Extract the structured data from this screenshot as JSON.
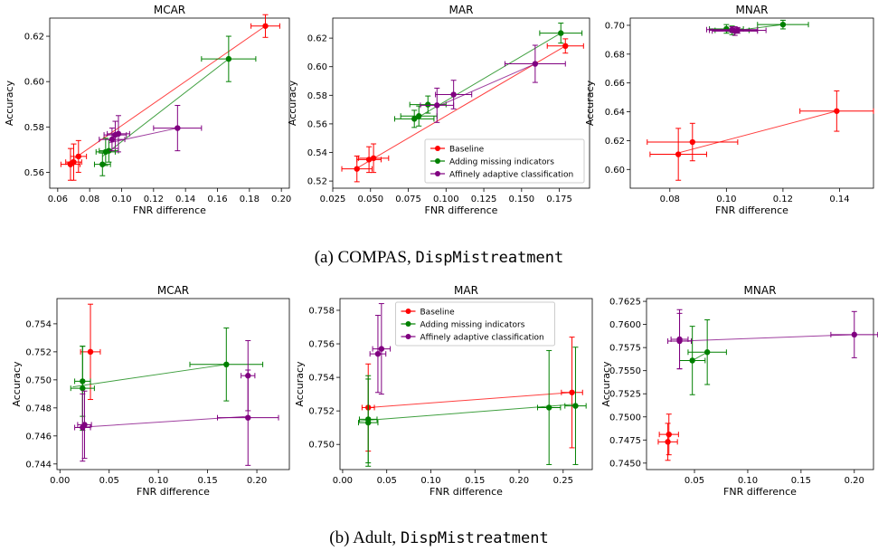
{
  "captions": [
    {
      "prefix": "(a) COMPAS, ",
      "mono": "DispMistreatment"
    },
    {
      "prefix": "(b) Adult, ",
      "mono": "DispMistreatment"
    }
  ],
  "series_colors": {
    "Baseline": "#ff0000",
    "Adding missing indicators": "#008000",
    "Affinely adaptive classification": "#800080"
  },
  "chart_data": [
    {
      "type": "scatter",
      "title": "MCAR",
      "xlabel": "FNR difference",
      "ylabel": "Accuracy",
      "xlim": [
        0.055,
        0.205
      ],
      "ylim": [
        0.553,
        0.628
      ],
      "xticks": [
        0.06,
        0.08,
        0.1,
        0.12,
        0.14,
        0.16,
        0.18,
        0.2
      ],
      "xtick_labels": [
        "0.06",
        "0.08",
        "0.10",
        "0.12",
        "0.14",
        "0.16",
        "0.18",
        "0.20"
      ],
      "yticks": [
        0.56,
        0.58,
        0.6,
        0.62
      ],
      "ytick_labels": [
        "0.56",
        "0.58",
        "0.60",
        "0.62"
      ],
      "legend": null,
      "series": [
        {
          "name": "Baseline",
          "fit": [
            [
              0.065,
              0.5635
            ],
            [
              0.19,
              0.6245
            ]
          ],
          "points": [
            [
              0.068,
              0.5635,
              0.006,
              0.007
            ],
            [
              0.07,
              0.5645,
              0.005,
              0.008
            ],
            [
              0.073,
              0.567,
              0.005,
              0.007
            ],
            [
              0.19,
              0.6245,
              0.009,
              0.005
            ]
          ]
        },
        {
          "name": "Adding missing indicators",
          "fit": [
            [
              0.088,
              0.567
            ],
            [
              0.167,
              0.61
            ]
          ],
          "points": [
            [
              0.088,
              0.5635,
              0.005,
              0.005
            ],
            [
              0.09,
              0.569,
              0.006,
              0.006
            ],
            [
              0.092,
              0.5695,
              0.006,
              0.005
            ],
            [
              0.167,
              0.61,
              0.017,
              0.01
            ]
          ]
        },
        {
          "name": "Affinely adaptive classification",
          "fit": [
            [
              0.092,
              0.573
            ],
            [
              0.135,
              0.5795
            ]
          ],
          "points": [
            [
              0.094,
              0.5745,
              0.008,
              0.005
            ],
            [
              0.096,
              0.5765,
              0.007,
              0.006
            ],
            [
              0.098,
              0.577,
              0.007,
              0.008
            ],
            [
              0.135,
              0.5795,
              0.015,
              0.01
            ]
          ]
        }
      ]
    },
    {
      "type": "scatter",
      "title": "MAR",
      "xlabel": "FNR difference",
      "ylabel": "Accuracy",
      "xlim": [
        0.025,
        0.195
      ],
      "ylim": [
        0.515,
        0.634
      ],
      "xticks": [
        0.025,
        0.05,
        0.075,
        0.1,
        0.125,
        0.15,
        0.175
      ],
      "xtick_labels": [
        "0.025",
        "0.050",
        "0.075",
        "0.100",
        "0.125",
        "0.150",
        "0.175"
      ],
      "yticks": [
        0.52,
        0.54,
        0.56,
        0.58,
        0.6,
        0.62
      ],
      "ytick_labels": [
        "0.52",
        "0.54",
        "0.56",
        "0.58",
        "0.60",
        "0.62"
      ],
      "legend": "lower-right",
      "series": [
        {
          "name": "Baseline",
          "fit": [
            [
              0.041,
              0.529
            ],
            [
              0.179,
              0.6145
            ]
          ],
          "points": [
            [
              0.041,
              0.5285,
              0.01,
              0.009
            ],
            [
              0.049,
              0.535,
              0.008,
              0.009
            ],
            [
              0.052,
              0.536,
              0.01,
              0.01
            ],
            [
              0.179,
              0.6145,
              0.012,
              0.005
            ]
          ]
        },
        {
          "name": "Adding missing indicators",
          "fit": [
            [
              0.079,
              0.563
            ],
            [
              0.176,
              0.6235
            ]
          ],
          "points": [
            [
              0.079,
              0.5635,
              0.013,
              0.006
            ],
            [
              0.082,
              0.5655,
              0.012,
              0.007
            ],
            [
              0.088,
              0.5735,
              0.012,
              0.006
            ],
            [
              0.176,
              0.6235,
              0.014,
              0.007
            ]
          ]
        },
        {
          "name": "Affinely adaptive classification",
          "fit": [
            [
              0.094,
              0.572
            ],
            [
              0.159,
              0.602
            ]
          ],
          "points": [
            [
              0.094,
              0.573,
              0.011,
              0.012
            ],
            [
              0.105,
              0.5805,
              0.012,
              0.01
            ],
            [
              0.159,
              0.602,
              0.02,
              0.013
            ]
          ]
        }
      ]
    },
    {
      "type": "scatter",
      "title": "MNAR",
      "xlabel": "FNR difference",
      "ylabel": "Accuracy",
      "xlim": [
        0.066,
        0.152
      ],
      "ylim": [
        0.587,
        0.705
      ],
      "xticks": [
        0.08,
        0.1,
        0.12,
        0.14
      ],
      "xtick_labels": [
        "0.08",
        "0.10",
        "0.12",
        "0.14"
      ],
      "yticks": [
        0.6,
        0.62,
        0.64,
        0.66,
        0.68,
        0.7
      ],
      "ytick_labels": [
        "0.60",
        "0.62",
        "0.64",
        "0.66",
        "0.68",
        "0.70"
      ],
      "legend": null,
      "series": [
        {
          "name": "Baseline",
          "fit": [
            [
              0.083,
              0.6115
            ],
            [
              0.139,
              0.6405
            ]
          ],
          "points": [
            [
              0.083,
              0.6105,
              0.01,
              0.018
            ],
            [
              0.088,
              0.619,
              0.016,
              0.013
            ],
            [
              0.139,
              0.6405,
              0.013,
              0.014
            ]
          ]
        },
        {
          "name": "Adding missing indicators",
          "fit": [
            [
              0.1,
              0.6955
            ],
            [
              0.12,
              0.7005
            ]
          ],
          "points": [
            [
              0.1,
              0.6975,
              0.006,
              0.003
            ],
            [
              0.102,
              0.6965,
              0.006,
              0.003
            ],
            [
              0.12,
              0.7005,
              0.009,
              0.003
            ]
          ]
        },
        {
          "name": "Affinely adaptive classification",
          "fit": [
            [
              0.102,
              0.6965
            ],
            [
              0.104,
              0.697
            ]
          ],
          "points": [
            [
              0.102,
              0.697,
              0.009,
              0.002
            ],
            [
              0.104,
              0.6965,
              0.01,
              0.002
            ],
            [
              0.103,
              0.696,
              0.008,
              0.003
            ]
          ]
        }
      ]
    },
    {
      "type": "scatter",
      "title": "MCAR",
      "xlabel": "FNR difference",
      "ylabel": "Accuracy",
      "xlim": [
        -0.003,
        0.233
      ],
      "ylim": [
        0.7436,
        0.7558
      ],
      "xticks": [
        0.0,
        0.05,
        0.1,
        0.15,
        0.2
      ],
      "xtick_labels": [
        "0.00",
        "0.05",
        "0.10",
        "0.15",
        "0.20"
      ],
      "yticks": [
        0.744,
        0.746,
        0.748,
        0.75,
        0.752,
        0.754
      ],
      "ytick_labels": [
        "0.744",
        "0.746",
        "0.748",
        "0.750",
        "0.752",
        "0.754"
      ],
      "legend": null,
      "series": [
        {
          "name": "Baseline",
          "fit": [],
          "points": [
            [
              0.031,
              0.752,
              0.01,
              0.0034
            ]
          ]
        },
        {
          "name": "Adding missing indicators",
          "fit": [
            [
              0.013,
              0.7495
            ],
            [
              0.169,
              0.7511
            ]
          ],
          "points": [
            [
              0.023,
              0.7494,
              0.012,
              0.003
            ],
            [
              0.023,
              0.7499,
              0.008,
              0.0025
            ],
            [
              0.169,
              0.7511,
              0.037,
              0.0026
            ]
          ]
        },
        {
          "name": "Affinely adaptive classification",
          "fit": [
            [
              0.017,
              0.7466
            ],
            [
              0.191,
              0.7474
            ]
          ],
          "points": [
            [
              0.023,
              0.7466,
              0.008,
              0.0024
            ],
            [
              0.025,
              0.7468,
              0.007,
              0.0024
            ],
            [
              0.191,
              0.7473,
              0.031,
              0.0034
            ],
            [
              0.191,
              0.7503,
              0.007,
              0.0025
            ]
          ]
        }
      ]
    },
    {
      "type": "scatter",
      "title": "MAR",
      "xlabel": "FNR difference",
      "ylabel": "Accuracy",
      "xlim": [
        -0.003,
        0.283
      ],
      "ylim": [
        0.7485,
        0.7587
      ],
      "xticks": [
        0.0,
        0.05,
        0.1,
        0.15,
        0.2,
        0.25
      ],
      "xtick_labels": [
        "0.00",
        "0.05",
        "0.10",
        "0.15",
        "0.20",
        "0.25"
      ],
      "yticks": [
        0.75,
        0.752,
        0.754,
        0.756,
        0.758
      ],
      "ytick_labels": [
        "0.750",
        "0.752",
        "0.754",
        "0.756",
        "0.758"
      ],
      "legend": "top-center",
      "series": [
        {
          "name": "Baseline",
          "fit": [
            [
              0.029,
              0.7522
            ],
            [
              0.26,
              0.7531
            ]
          ],
          "points": [
            [
              0.029,
              0.7522,
              0.007,
              0.0026
            ],
            [
              0.26,
              0.7531,
              0.012,
              0.0033
            ]
          ]
        },
        {
          "name": "Adding missing indicators",
          "fit": [
            [
              0.018,
              0.7514
            ],
            [
              0.264,
              0.7524
            ]
          ],
          "points": [
            [
              0.029,
              0.7513,
              0.011,
              0.0026
            ],
            [
              0.029,
              0.7515,
              0.01,
              0.0026
            ],
            [
              0.234,
              0.7522,
              0.013,
              0.0034
            ],
            [
              0.264,
              0.7523,
              0.012,
              0.0035
            ]
          ]
        },
        {
          "name": "Affinely adaptive classification",
          "fit": [
            [
              0.04,
              0.7554
            ],
            [
              0.044,
              0.7557
            ]
          ],
          "points": [
            [
              0.04,
              0.7554,
              0.009,
              0.0023
            ],
            [
              0.044,
              0.7557,
              0.01,
              0.0027
            ]
          ]
        }
      ]
    },
    {
      "type": "scatter",
      "title": "MNAR",
      "xlabel": "FNR difference",
      "ylabel": "Accuracy",
      "xlim": [
        0.005,
        0.218
      ],
      "ylim": [
        0.7443,
        0.7628
      ],
      "xticks": [
        0.05,
        0.1,
        0.15,
        0.2
      ],
      "xtick_labels": [
        "0.05",
        "0.10",
        "0.15",
        "0.20"
      ],
      "yticks": [
        0.745,
        0.7475,
        0.75,
        0.7525,
        0.755,
        0.7575,
        0.76,
        0.7625
      ],
      "ytick_labels": [
        "0.7450",
        "0.7475",
        "0.7500",
        "0.7525",
        "0.7550",
        "0.7575",
        "0.7600",
        "0.7625"
      ],
      "legend": null,
      "series": [
        {
          "name": "Baseline",
          "fit": [],
          "points": [
            [
              0.025,
              0.7473,
              0.009,
              0.002
            ],
            [
              0.026,
              0.7481,
              0.009,
              0.0022
            ]
          ]
        },
        {
          "name": "Adding missing indicators",
          "fit": [
            [
              0.048,
              0.7561
            ],
            [
              0.062,
              0.757
            ]
          ],
          "points": [
            [
              0.048,
              0.7561,
              0.012,
              0.0037
            ],
            [
              0.062,
              0.757,
              0.018,
              0.0035
            ]
          ]
        },
        {
          "name": "Affinely adaptive classification",
          "fit": [
            [
              0.036,
              0.7582
            ],
            [
              0.2,
              0.7589
            ]
          ],
          "points": [
            [
              0.036,
              0.7582,
              0.011,
              0.003
            ],
            [
              0.036,
              0.7584,
              0.008,
              0.0032
            ],
            [
              0.2,
              0.7589,
              0.022,
              0.0025
            ]
          ]
        }
      ]
    }
  ]
}
